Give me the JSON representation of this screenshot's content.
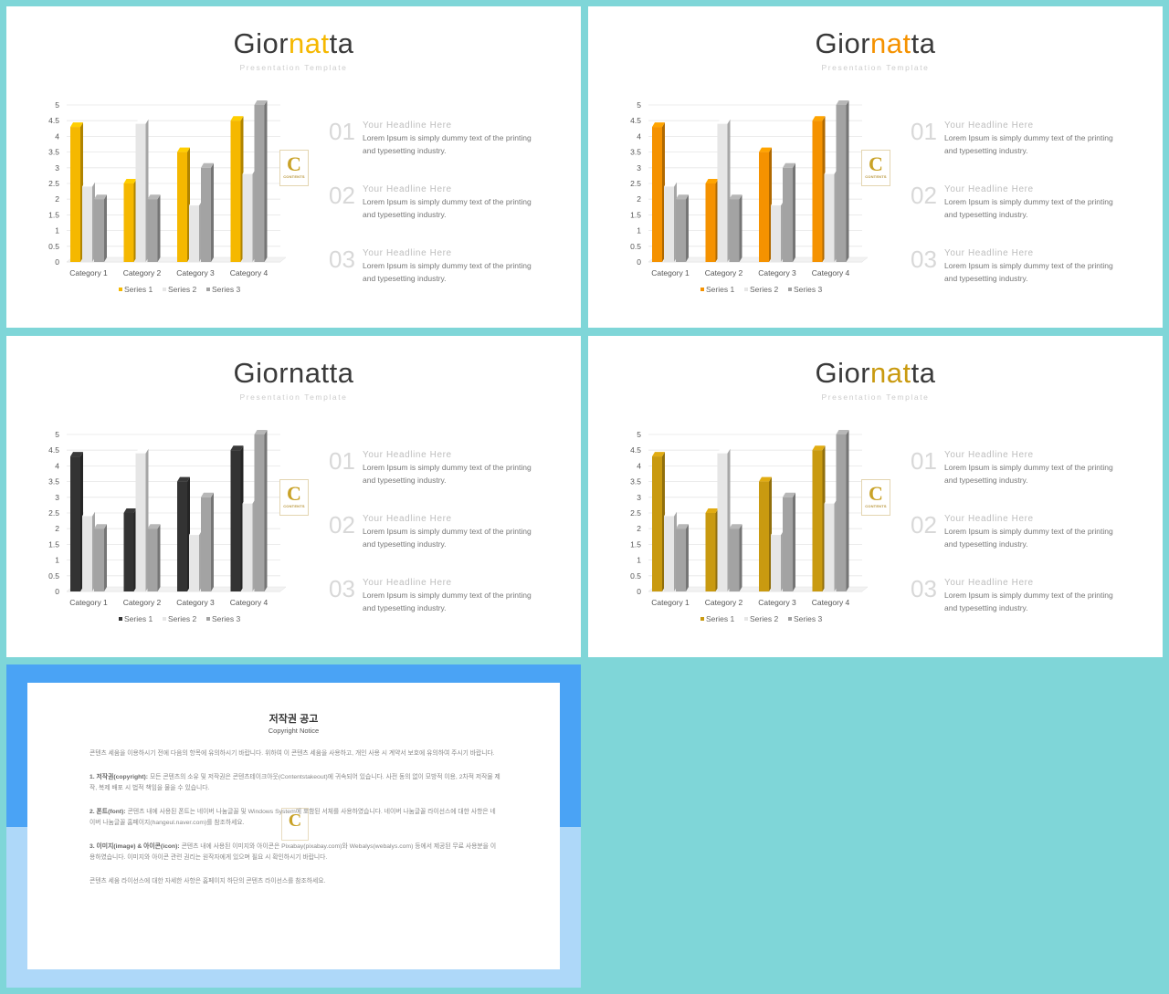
{
  "slides": [
    {
      "title_parts": [
        "Gior",
        "nat",
        "ta"
      ],
      "accent": "#f5b800",
      "subtitle": "Presentation Template",
      "logo": {
        "letter": "C",
        "text": "CONTENTS"
      },
      "items": [
        {
          "num": "01",
          "head": "Your Headline Here",
          "body": "Lorem Ipsum is simply dummy text of the printing and typesetting industry."
        },
        {
          "num": "02",
          "head": "Your Headline Here",
          "body": "Lorem Ipsum is simply dummy text of the printing and typesetting industry."
        },
        {
          "num": "03",
          "head": "Your Headline Here",
          "body": "Lorem Ipsum is simply dummy text of the printing and typesetting industry."
        }
      ],
      "chart_colors": [
        "#f5b800",
        "#e6e6e6",
        "#a3a3a3"
      ]
    },
    {
      "title_parts": [
        "Gior",
        "nat",
        "ta"
      ],
      "accent": "#f59200",
      "subtitle": "Presentation Template",
      "logo": {
        "letter": "C",
        "text": "CONTENTS"
      },
      "items": [
        {
          "num": "01",
          "head": "Your Headline Here",
          "body": "Lorem Ipsum is simply dummy text of the printing and typesetting industry."
        },
        {
          "num": "02",
          "head": "Your Headline Here",
          "body": "Lorem Ipsum is simply dummy text of the printing and typesetting industry."
        },
        {
          "num": "03",
          "head": "Your Headline Here",
          "body": "Lorem Ipsum is simply dummy text of the printing and typesetting industry."
        }
      ],
      "chart_colors": [
        "#f59200",
        "#e6e6e6",
        "#a3a3a3"
      ]
    },
    {
      "title_parts": [
        "Gior",
        "nat",
        "ta"
      ],
      "accent": "#3a3a3a",
      "subtitle": "Presentation Template",
      "logo": {
        "letter": "C",
        "text": "CONTENTS"
      },
      "items": [
        {
          "num": "01",
          "head": "Your Headline Here",
          "body": "Lorem Ipsum is simply dummy text of the printing and typesetting industry."
        },
        {
          "num": "02",
          "head": "Your Headline Here",
          "body": "Lorem Ipsum is simply dummy text of the printing and typesetting industry."
        },
        {
          "num": "03",
          "head": "Your Headline Here",
          "body": "Lorem Ipsum is simply dummy text of the printing and typesetting industry."
        }
      ],
      "chart_colors": [
        "#333333",
        "#e6e6e6",
        "#a3a3a3"
      ]
    },
    {
      "title_parts": [
        "Gior",
        "nat",
        "ta"
      ],
      "accent": "#c99a10",
      "subtitle": "Presentation Template",
      "logo": {
        "letter": "C",
        "text": "CONTENTS"
      },
      "items": [
        {
          "num": "01",
          "head": "Your Headline Here",
          "body": "Lorem Ipsum is simply dummy text of the printing and typesetting industry."
        },
        {
          "num": "02",
          "head": "Your Headline Here",
          "body": "Lorem Ipsum is simply dummy text of the printing and typesetting industry."
        },
        {
          "num": "03",
          "head": "Your Headline Here",
          "body": "Lorem Ipsum is simply dummy text of the printing and typesetting industry."
        }
      ],
      "chart_colors": [
        "#c99a10",
        "#e6e6e6",
        "#a3a3a3"
      ]
    }
  ],
  "chart_data": {
    "type": "bar",
    "categories": [
      "Category 1",
      "Category 2",
      "Category 3",
      "Category 4"
    ],
    "series": [
      {
        "name": "Series 1",
        "values": [
          4.3,
          2.5,
          3.5,
          4.5
        ]
      },
      {
        "name": "Series 2",
        "values": [
          2.4,
          4.4,
          1.8,
          2.8
        ]
      },
      {
        "name": "Series 3",
        "values": [
          2.0,
          2.0,
          3.0,
          5.0
        ]
      }
    ],
    "yticks": [
      "0",
      "0.5",
      "1",
      "1.5",
      "2",
      "2.5",
      "3",
      "3.5",
      "4",
      "4.5",
      "5"
    ],
    "ylim": [
      0,
      5
    ],
    "grid": true,
    "legend": "bottom"
  },
  "notice": {
    "title": "저작권 공고",
    "subtitle": "Copyright Notice",
    "logo_letter": "C",
    "paragraphs": [
      {
        "lead": "",
        "text": "콘텐츠 세움을 이용하시기 전에 다음의 항목에 유의하시기 바랍니다. 위하여 이 콘텐츠 세움을 사용하고, 개인 사용 시 계약서 보호에 유의하여 주시기 바랍니다."
      },
      {
        "lead": "1. 저작권(copyright):",
        "text": "모든 콘텐츠의 소유 및 저작권은 콘텐츠테이크아웃(Contentstakeout)에 귀속되어 있습니다. 사전 동의 없이 모방적 이용, 2차적 저작물 제작, 복제 배포 시 법적 책임을 물을 수 있습니다."
      },
      {
        "lead": "2. 폰트(font):",
        "text": "콘텐츠 내에 사용된 폰트는 네이버 나눔글꼴 및 Windows System에 포함된 서체를 사용하였습니다. 네이버 나눔글꼴 라이선스에 대한 사항은 네이버 나눔글꼴 홈페이지(hangeul.naver.com)를 참조하세요."
      },
      {
        "lead": "3. 이미지(image) & 아이콘(icon):",
        "text": "콘텐츠 내에 사용된 이미지와 아이콘은 Pixabay(pixabay.com)와 Webalys(webalys.com) 등에서 제공된 무료 사용분을 이용하였습니다. 이미지와 아이콘 관련 권리는 원작자에게 있으며 필요 시 확인하시기 바랍니다."
      },
      {
        "lead": "",
        "text": "콘텐츠 세움 라이선스에 대한 자세한 사항은 홈페이지 하단의 콘텐츠 라이선스를 참조하세요."
      }
    ]
  }
}
